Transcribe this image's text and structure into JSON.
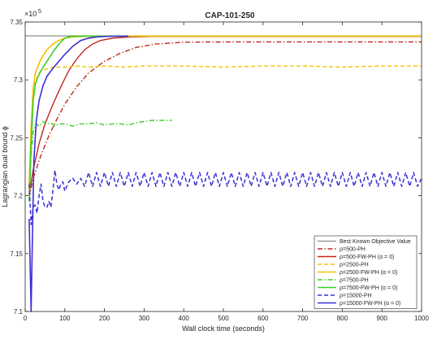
{
  "chart_data": {
    "type": "line",
    "title": "CAP-101-250",
    "xlabel": "Wall clock time (seconds)",
    "ylabel": "Lagrangian dual bound ϕ",
    "y_exponent_label": "×10",
    "y_exponent_power": "5",
    "xlim": [
      0,
      1000
    ],
    "ylim": [
      7.1,
      7.35
    ],
    "x_ticks": [
      "0",
      "100",
      "200",
      "300",
      "400",
      "500",
      "600",
      "700",
      "800",
      "900",
      "1000"
    ],
    "y_ticks": [
      "7.1",
      "7.15",
      "7.2",
      "7.25",
      "7.3",
      "7.35"
    ],
    "grid": false,
    "legend_position": "bottom-right",
    "series": [
      {
        "name": "Best Known Objective Value",
        "color": "#8c8c8c",
        "dash": "solid",
        "width": 1.2,
        "points": [
          [
            0,
            7.338
          ],
          [
            1000,
            7.338
          ]
        ]
      },
      {
        "name": "ρ=500-PH",
        "color": "#c0281b",
        "dash": "dashdot",
        "width": 1.4,
        "points": [
          [
            10,
            7.198
          ],
          [
            20,
            7.215
          ],
          [
            40,
            7.235
          ],
          [
            60,
            7.252
          ],
          [
            80,
            7.266
          ],
          [
            100,
            7.279
          ],
          [
            130,
            7.294
          ],
          [
            160,
            7.306
          ],
          [
            200,
            7.316
          ],
          [
            240,
            7.323
          ],
          [
            280,
            7.328
          ],
          [
            330,
            7.331
          ],
          [
            400,
            7.3325
          ],
          [
            500,
            7.3327
          ],
          [
            600,
            7.3327
          ],
          [
            800,
            7.3327
          ],
          [
            1000,
            7.3327
          ]
        ]
      },
      {
        "name": "ρ=500-FW-PH (α = 0)",
        "color": "#c0281b",
        "dash": "solid",
        "width": 1.4,
        "points": [
          [
            10,
            7.201
          ],
          [
            20,
            7.222
          ],
          [
            35,
            7.245
          ],
          [
            50,
            7.262
          ],
          [
            70,
            7.279
          ],
          [
            90,
            7.294
          ],
          [
            110,
            7.308
          ],
          [
            130,
            7.318
          ],
          [
            150,
            7.326
          ],
          [
            170,
            7.331
          ],
          [
            190,
            7.334
          ],
          [
            220,
            7.336
          ],
          [
            260,
            7.337
          ],
          [
            320,
            7.3375
          ],
          [
            400,
            7.3375
          ],
          [
            600,
            7.3375
          ],
          [
            1000,
            7.3375
          ]
        ]
      },
      {
        "name": "ρ=2500-PH",
        "color": "#f2c200",
        "dash": "dashed",
        "width": 1.4,
        "points": [
          [
            10,
            7.205
          ],
          [
            15,
            7.24
          ],
          [
            20,
            7.28
          ],
          [
            25,
            7.298
          ],
          [
            35,
            7.306
          ],
          [
            50,
            7.309
          ],
          [
            70,
            7.311
          ],
          [
            100,
            7.311
          ],
          [
            130,
            7.312
          ],
          [
            160,
            7.311
          ],
          [
            200,
            7.312
          ],
          [
            250,
            7.311
          ],
          [
            300,
            7.312
          ],
          [
            400,
            7.312
          ],
          [
            500,
            7.311
          ],
          [
            600,
            7.312
          ],
          [
            700,
            7.312
          ],
          [
            800,
            7.311
          ],
          [
            900,
            7.312
          ],
          [
            1000,
            7.312
          ]
        ]
      },
      {
        "name": "ρ=2500-FW-PH (α = 0)",
        "color": "#f2c200",
        "dash": "solid",
        "width": 1.6,
        "points": [
          [
            10,
            7.21
          ],
          [
            15,
            7.26
          ],
          [
            20,
            7.292
          ],
          [
            25,
            7.305
          ],
          [
            30,
            7.31
          ],
          [
            40,
            7.318
          ],
          [
            55,
            7.326
          ],
          [
            70,
            7.331
          ],
          [
            85,
            7.334
          ],
          [
            100,
            7.336
          ],
          [
            120,
            7.337
          ],
          [
            150,
            7.3375
          ],
          [
            200,
            7.3378
          ],
          [
            300,
            7.3378
          ],
          [
            500,
            7.3378
          ],
          [
            1000,
            7.3378
          ]
        ]
      },
      {
        "name": "ρ=7500-PH",
        "color": "#3ccd2a",
        "dash": "dashdot",
        "width": 1.4,
        "points": [
          [
            10,
            7.2
          ],
          [
            15,
            7.235
          ],
          [
            20,
            7.255
          ],
          [
            28,
            7.262
          ],
          [
            35,
            7.26
          ],
          [
            45,
            7.264
          ],
          [
            55,
            7.262
          ],
          [
            65,
            7.263
          ],
          [
            75,
            7.26
          ],
          [
            85,
            7.262
          ],
          [
            100,
            7.262
          ],
          [
            120,
            7.26
          ],
          [
            140,
            7.262
          ],
          [
            160,
            7.262
          ],
          [
            180,
            7.263
          ],
          [
            200,
            7.261
          ],
          [
            220,
            7.262
          ],
          [
            240,
            7.262
          ],
          [
            260,
            7.261
          ],
          [
            280,
            7.263
          ],
          [
            300,
            7.264
          ],
          [
            320,
            7.265
          ],
          [
            340,
            7.265
          ],
          [
            370,
            7.265
          ]
        ]
      },
      {
        "name": "ρ=7500-FW-PH (α = 0)",
        "color": "#3ccd2a",
        "dash": "solid",
        "width": 1.6,
        "points": [
          [
            10,
            7.195
          ],
          [
            15,
            7.245
          ],
          [
            20,
            7.282
          ],
          [
            25,
            7.295
          ],
          [
            30,
            7.301
          ],
          [
            40,
            7.308
          ],
          [
            55,
            7.316
          ],
          [
            70,
            7.324
          ],
          [
            85,
            7.331
          ],
          [
            100,
            7.336
          ],
          [
            115,
            7.3375
          ],
          [
            140,
            7.3378
          ],
          [
            200,
            7.3378
          ],
          [
            260,
            7.3378
          ]
        ]
      },
      {
        "name": "ρ=15000-PH",
        "color": "#3a2fd6",
        "dash": "dashed",
        "width": 1.5,
        "points": [
          [
            10,
            7.21
          ],
          [
            15,
            7.175
          ],
          [
            20,
            7.19
          ],
          [
            25,
            7.192
          ],
          [
            30,
            7.185
          ],
          [
            35,
            7.2
          ],
          [
            40,
            7.21
          ],
          [
            45,
            7.195
          ],
          [
            50,
            7.19
          ],
          [
            55,
            7.19
          ],
          [
            60,
            7.195
          ],
          [
            65,
            7.19
          ],
          [
            70,
            7.205
          ],
          [
            75,
            7.222
          ],
          [
            80,
            7.21
          ],
          [
            85,
            7.205
          ],
          [
            90,
            7.21
          ],
          [
            95,
            7.212
          ],
          [
            100,
            7.204
          ],
          [
            110,
            7.212
          ],
          [
            120,
            7.215
          ],
          [
            130,
            7.21
          ],
          [
            140,
            7.215
          ],
          [
            150,
            7.208
          ],
          [
            160,
            7.22
          ],
          [
            170,
            7.208
          ],
          [
            180,
            7.22
          ],
          [
            190,
            7.208
          ],
          [
            200,
            7.22
          ],
          [
            210,
            7.208
          ],
          [
            220,
            7.22
          ],
          [
            230,
            7.208
          ],
          [
            240,
            7.22
          ],
          [
            250,
            7.208
          ],
          [
            260,
            7.22
          ],
          [
            270,
            7.208
          ],
          [
            280,
            7.22
          ],
          [
            290,
            7.208
          ],
          [
            300,
            7.22
          ],
          [
            310,
            7.208
          ],
          [
            320,
            7.22
          ],
          [
            330,
            7.208
          ],
          [
            340,
            7.22
          ],
          [
            350,
            7.208
          ],
          [
            360,
            7.22
          ],
          [
            370,
            7.208
          ],
          [
            380,
            7.22
          ],
          [
            390,
            7.208
          ],
          [
            400,
            7.22
          ],
          [
            410,
            7.208
          ],
          [
            420,
            7.22
          ],
          [
            430,
            7.208
          ],
          [
            440,
            7.22
          ],
          [
            450,
            7.208
          ],
          [
            460,
            7.22
          ],
          [
            470,
            7.208
          ],
          [
            480,
            7.22
          ],
          [
            490,
            7.208
          ],
          [
            500,
            7.22
          ],
          [
            510,
            7.208
          ],
          [
            520,
            7.22
          ],
          [
            530,
            7.208
          ],
          [
            540,
            7.22
          ],
          [
            550,
            7.208
          ],
          [
            560,
            7.22
          ],
          [
            570,
            7.208
          ],
          [
            580,
            7.22
          ],
          [
            590,
            7.208
          ],
          [
            600,
            7.22
          ],
          [
            610,
            7.208
          ],
          [
            620,
            7.22
          ],
          [
            630,
            7.208
          ],
          [
            640,
            7.22
          ],
          [
            650,
            7.208
          ],
          [
            660,
            7.22
          ],
          [
            670,
            7.208
          ],
          [
            680,
            7.22
          ],
          [
            690,
            7.208
          ],
          [
            700,
            7.22
          ],
          [
            710,
            7.208
          ],
          [
            720,
            7.22
          ],
          [
            730,
            7.208
          ],
          [
            740,
            7.22
          ],
          [
            750,
            7.208
          ],
          [
            760,
            7.22
          ],
          [
            770,
            7.208
          ],
          [
            780,
            7.22
          ],
          [
            790,
            7.208
          ],
          [
            800,
            7.22
          ],
          [
            810,
            7.208
          ],
          [
            820,
            7.22
          ],
          [
            830,
            7.208
          ],
          [
            840,
            7.22
          ],
          [
            850,
            7.208
          ],
          [
            860,
            7.22
          ],
          [
            870,
            7.208
          ],
          [
            880,
            7.22
          ],
          [
            890,
            7.208
          ],
          [
            900,
            7.22
          ],
          [
            910,
            7.208
          ],
          [
            920,
            7.22
          ],
          [
            930,
            7.208
          ],
          [
            940,
            7.22
          ],
          [
            950,
            7.208
          ],
          [
            960,
            7.22
          ],
          [
            970,
            7.208
          ],
          [
            980,
            7.22
          ],
          [
            990,
            7.208
          ],
          [
            1000,
            7.215
          ]
        ]
      },
      {
        "name": "ρ=15000-FW-PH (α = 0)",
        "color": "#3a2fd6",
        "dash": "solid",
        "width": 1.6,
        "points": [
          [
            10,
            7.18
          ],
          [
            15,
            7.1
          ],
          [
            18,
            7.16
          ],
          [
            22,
            7.23
          ],
          [
            28,
            7.265
          ],
          [
            35,
            7.282
          ],
          [
            45,
            7.295
          ],
          [
            55,
            7.303
          ],
          [
            70,
            7.31
          ],
          [
            85,
            7.316
          ],
          [
            100,
            7.322
          ],
          [
            120,
            7.329
          ],
          [
            140,
            7.334
          ],
          [
            160,
            7.336
          ],
          [
            180,
            7.337
          ],
          [
            200,
            7.3375
          ],
          [
            230,
            7.3378
          ],
          [
            260,
            7.3378
          ]
        ]
      }
    ]
  }
}
